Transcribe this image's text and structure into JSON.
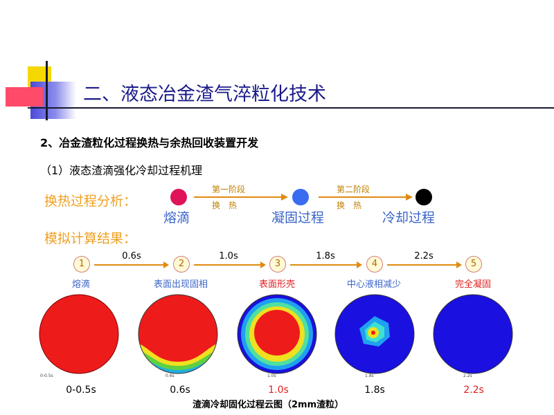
{
  "title": "二、液态冶金渣气淬粒化技术",
  "subtitle": "2、冶金渣粒化过程换热与余热回收装置开发",
  "section": "（1）液态渣滴强化冷却过程机理",
  "heat_analysis": {
    "label": "换热过程分析：",
    "stage1": {
      "label": "熔滴",
      "color": "#e0125a"
    },
    "arrow1": {
      "top": "第一阶段",
      "bottom": "换　热"
    },
    "stage2": {
      "label": "凝固过程",
      "color": "#3a6cf0"
    },
    "arrow2": {
      "top": "第二阶段",
      "bottom": "换　热"
    },
    "stage3": {
      "label": "冷却过程",
      "color": "#000000"
    }
  },
  "simulation": {
    "label": "模拟计算结果：",
    "steps": [
      {
        "num": "1",
        "name": "熔滴",
        "name_color": "#3b64c8",
        "time": "0-0.5s",
        "time_red": false,
        "inset": "0-0.5s"
      },
      {
        "num": "2",
        "name": "表面出现固相",
        "name_color": "#3b64c8",
        "time": "0.6s",
        "time_red": false,
        "inset": "0.6s"
      },
      {
        "num": "3",
        "name": "表面形壳",
        "name_color": "#e02020",
        "time": "1.0s",
        "time_red": true,
        "inset": "1.0s"
      },
      {
        "num": "4",
        "name": "中心液相减少",
        "name_color": "#3b64c8",
        "time": "1.8s",
        "time_red": false,
        "inset": "1.8s"
      },
      {
        "num": "5",
        "name": "完全凝固",
        "name_color": "#e02020",
        "time": "2.2s",
        "time_red": true,
        "inset": "2.2s"
      }
    ],
    "arrows": [
      "0.6s",
      "1.0s",
      "1.8s",
      "2.2s"
    ],
    "caption": "渣滴冷却固化过程云图（2mm渣粒）"
  }
}
